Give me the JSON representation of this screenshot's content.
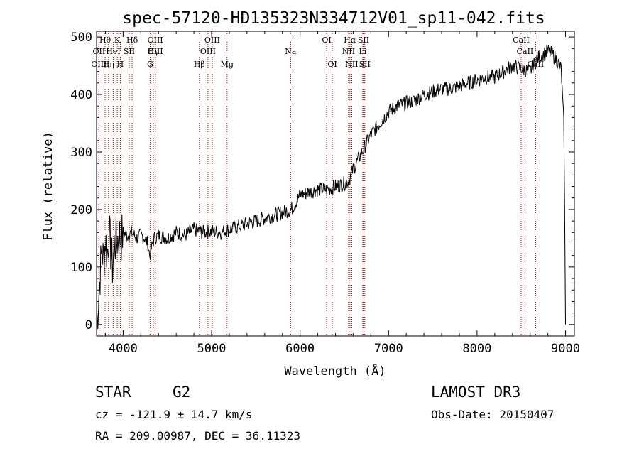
{
  "chart_data": {
    "type": "line",
    "title": "spec-57120-HD135323N334712V01_sp11-042.fits",
    "xlabel": "Wavelength (Å)",
    "ylabel": "Flux (relative)",
    "xlim": [
      3700,
      9100
    ],
    "ylim": [
      -20,
      510
    ],
    "xticks": [
      4000,
      5000,
      6000,
      7000,
      8000,
      9000
    ],
    "yticks": [
      0,
      100,
      200,
      300,
      400,
      500
    ],
    "grid": false,
    "series": [
      {
        "name": "spectrum",
        "x": [
          3700,
          3720,
          3740,
          3760,
          3780,
          3800,
          3820,
          3840,
          3860,
          3880,
          3900,
          3920,
          3940,
          3960,
          3980,
          4000,
          4050,
          4100,
          4150,
          4200,
          4250,
          4280,
          4300,
          4350,
          4400,
          4500,
          4600,
          4700,
          4800,
          4900,
          5000,
          5100,
          5200,
          5300,
          5400,
          5500,
          5600,
          5700,
          5800,
          5900,
          6000,
          6100,
          6200,
          6300,
          6400,
          6500,
          6550,
          6600,
          6700,
          6800,
          6900,
          7000,
          7100,
          7200,
          7300,
          7400,
          7500,
          7600,
          7700,
          7800,
          7900,
          8000,
          8100,
          8200,
          8300,
          8400,
          8500,
          8600,
          8650,
          8700,
          8750,
          8800,
          8850,
          8900,
          8950,
          8980,
          8990,
          9000
        ],
        "y": [
          0,
          40,
          90,
          130,
          110,
          150,
          120,
          160,
          130,
          100,
          140,
          145,
          150,
          155,
          150,
          160,
          155,
          160,
          150,
          155,
          150,
          140,
          120,
          150,
          155,
          150,
          160,
          155,
          165,
          160,
          162,
          160,
          165,
          170,
          175,
          180,
          185,
          190,
          195,
          200,
          225,
          230,
          235,
          235,
          240,
          245,
          250,
          270,
          300,
          330,
          350,
          370,
          380,
          385,
          390,
          400,
          405,
          410,
          410,
          415,
          420,
          425,
          430,
          430,
          440,
          450,
          445,
          440,
          455,
          465,
          470,
          475,
          470,
          460,
          445,
          350,
          200,
          0
        ]
      }
    ],
    "spectral_lines": [
      {
        "label": "Hδ",
        "wavelength": 4102,
        "row": 0
      },
      {
        "label": "Hγ",
        "wavelength": 4341,
        "row": 1
      },
      {
        "label": "Hβ",
        "wavelength": 4862,
        "row": 2
      },
      {
        "label": "OIII",
        "wavelength": 5007,
        "row": 0
      },
      {
        "label": "Mg",
        "wavelength": 5175,
        "row": 2
      },
      {
        "label": "Na",
        "wavelength": 5893,
        "row": 1
      },
      {
        "label": "OI",
        "wavelength": 6300,
        "row": 0
      },
      {
        "label": "OI",
        "wavelength": 6364,
        "row": 2
      },
      {
        "label": "Hα",
        "wavelength": 6563,
        "row": 0
      },
      {
        "label": "NII",
        "wavelength": 6548,
        "row": 1
      },
      {
        "label": "NII",
        "wavelength": 6584,
        "row": 2
      },
      {
        "label": "SII",
        "wavelength": 6717,
        "row": 0
      },
      {
        "label": "Li",
        "wavelength": 6708,
        "row": 1
      },
      {
        "label": "SII",
        "wavelength": 6731,
        "row": 2
      },
      {
        "label": "CaII",
        "wavelength": 8498,
        "row": 0
      },
      {
        "label": "CaII",
        "wavelength": 8542,
        "row": 1
      },
      {
        "label": "CaII",
        "wavelength": 8662,
        "row": 2
      },
      {
        "label": "Hθ",
        "wavelength": 3797,
        "row": 0
      },
      {
        "label": "OII",
        "wavelength": 3727,
        "row": 1
      },
      {
        "label": "OIII",
        "wavelength": 4363,
        "row": 1
      },
      {
        "label": "OIII",
        "wavelength": 4959,
        "row": 1
      },
      {
        "label": "K",
        "wavelength": 3934,
        "row": 0
      },
      {
        "label": "H",
        "wavelength": 3968,
        "row": 2
      },
      {
        "label": "G",
        "wavelength": 4305,
        "row": 2
      },
      {
        "label": "OIII",
        "wavelength": 4363,
        "row": 0
      },
      {
        "label": "HeI",
        "wavelength": 3889,
        "row": 1
      },
      {
        "label": "SII",
        "wavelength": 4069,
        "row": 1
      },
      {
        "label": "Hη",
        "wavelength": 3835,
        "row": 2
      },
      {
        "label": "OIII",
        "wavelength": 3727,
        "row": 2
      }
    ]
  },
  "info": {
    "object_class": "STAR",
    "subclass": "G2",
    "cz": "cz = -121.9 ± 14.7 km/s",
    "coords": "RA = 209.00987, DEC =  36.11323",
    "survey": "LAMOST DR3",
    "obs_date": "Obs-Date: 20150407"
  }
}
